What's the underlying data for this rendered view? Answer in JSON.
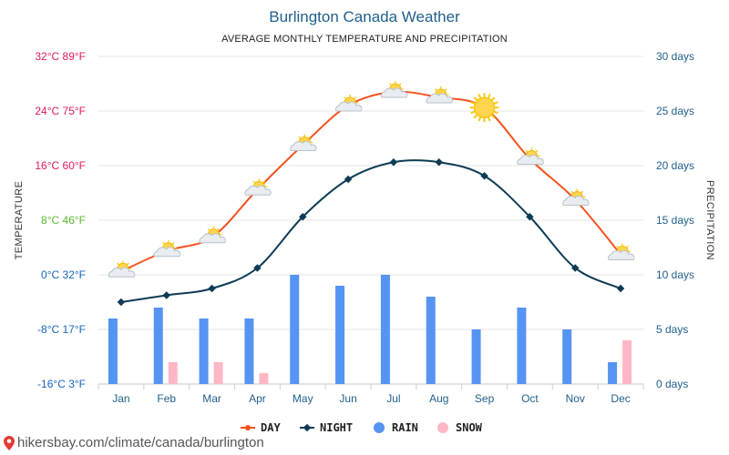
{
  "chart_data": {
    "type": "line",
    "title": "Burlington Canada Weather",
    "subtitle": "AVERAGE MONTHLY TEMPERATURE AND PRECIPITATION",
    "categories": [
      "Jan",
      "Feb",
      "Mar",
      "Apr",
      "May",
      "Jun",
      "Jul",
      "Aug",
      "Sep",
      "Oct",
      "Nov",
      "Dec"
    ],
    "ylabel_left": "TEMPERATURE",
    "ylabel_right": "PRECIPITATION",
    "temp_ticks": [
      {
        "value": 32,
        "label": "32°C 89°F",
        "color": "#e2185b"
      },
      {
        "value": 24,
        "label": "24°C 75°F",
        "color": "#e2185b"
      },
      {
        "value": 16,
        "label": "16°C 60°F",
        "color": "#e2185b"
      },
      {
        "value": 8,
        "label": "8°C 46°F",
        "color": "#5cb82e"
      },
      {
        "value": 0,
        "label": "0°C 32°F",
        "color": "#1565c0"
      },
      {
        "value": -8,
        "label": "-8°C 17°F",
        "color": "#1565c0"
      },
      {
        "value": -16,
        "label": "-16°C 3°F",
        "color": "#1565c0"
      }
    ],
    "temp_ylim": [
      -16,
      32
    ],
    "precip_ticks": [
      {
        "value": 30,
        "label": "30 days"
      },
      {
        "value": 25,
        "label": "25 days"
      },
      {
        "value": 20,
        "label": "20 days"
      },
      {
        "value": 15,
        "label": "15 days"
      },
      {
        "value": 10,
        "label": "10 days"
      },
      {
        "value": 5,
        "label": "5 days"
      },
      {
        "value": 0,
        "label": "0 days"
      }
    ],
    "precip_ylim": [
      0,
      30
    ],
    "grid": true,
    "legend_position": "bottom",
    "series": [
      {
        "name": "DAY",
        "kind": "line",
        "color": "#f4511e",
        "values": [
          0.5,
          3.5,
          5.5,
          12.5,
          19,
          24.8,
          26.8,
          26,
          24.5,
          17,
          11,
          3
        ]
      },
      {
        "name": "NIGHT",
        "kind": "line",
        "color": "#0d3b55",
        "values": [
          -4,
          -3,
          -2,
          1,
          8.5,
          14,
          16.5,
          16.5,
          14.5,
          8.5,
          1,
          -2
        ]
      },
      {
        "name": "RAIN",
        "kind": "bar",
        "color": "#5594f2",
        "values": [
          6,
          7,
          6,
          6,
          10,
          9,
          10,
          8,
          5,
          7,
          5,
          2
        ]
      },
      {
        "name": "SNOW",
        "kind": "bar",
        "color": "#ffb7c5",
        "values": [
          0,
          2,
          2,
          1,
          0,
          0,
          0,
          0,
          0,
          0,
          0,
          4
        ]
      }
    ],
    "weather_icons": [
      "partly-cloudy-icon",
      "partly-cloudy-icon",
      "partly-cloudy-icon",
      "partly-cloudy-icon",
      "partly-cloudy-icon",
      "partly-cloudy-icon",
      "partly-cloudy-icon",
      "partly-cloudy-icon",
      "sun-icon",
      "partly-cloudy-icon",
      "partly-cloudy-icon",
      "partly-cloudy-icon"
    ]
  },
  "footer": {
    "link_text": "hikersbay.com/climate/canada/burlington",
    "pin_icon": "location-pin-icon"
  }
}
